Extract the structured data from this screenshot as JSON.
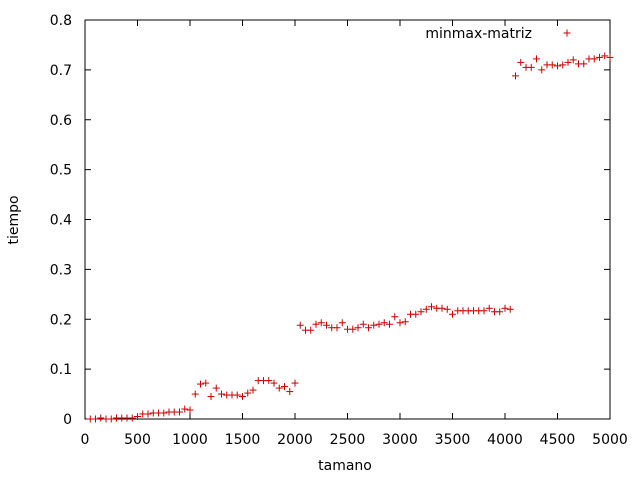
{
  "chart_data": {
    "type": "scatter",
    "title": "",
    "xlabel": "tamano",
    "ylabel": "tiempo",
    "xlim": [
      0,
      5000
    ],
    "ylim": [
      0,
      0.8
    ],
    "xticks": [
      "0",
      "500",
      "1000",
      "1500",
      "2000",
      "2500",
      "3000",
      "3500",
      "4000",
      "4500",
      "5000"
    ],
    "yticks": [
      "0",
      "0.1",
      "0.2",
      "0.3",
      "0.4",
      "0.5",
      "0.6",
      "0.7",
      "0.8"
    ],
    "grid": false,
    "legend_position": "top-right",
    "marker": "plus",
    "color": "#cc0000",
    "series": [
      {
        "name": "minmax-matriz",
        "points": [
          [
            50,
            0
          ],
          [
            100,
            0
          ],
          [
            150,
            0.002
          ],
          [
            200,
            0
          ],
          [
            250,
            0
          ],
          [
            300,
            0.002
          ],
          [
            350,
            0.002
          ],
          [
            400,
            0.002
          ],
          [
            450,
            0.002
          ],
          [
            500,
            0.005
          ],
          [
            550,
            0.01
          ],
          [
            600,
            0.01
          ],
          [
            650,
            0.012
          ],
          [
            700,
            0.012
          ],
          [
            750,
            0.012
          ],
          [
            800,
            0.014
          ],
          [
            850,
            0.014
          ],
          [
            900,
            0.014
          ],
          [
            950,
            0.02
          ],
          [
            1000,
            0.018
          ],
          [
            1050,
            0.05
          ],
          [
            1100,
            0.07
          ],
          [
            1150,
            0.072
          ],
          [
            1200,
            0.045
          ],
          [
            1250,
            0.062
          ],
          [
            1300,
            0.05
          ],
          [
            1350,
            0.048
          ],
          [
            1400,
            0.048
          ],
          [
            1450,
            0.048
          ],
          [
            1500,
            0.045
          ],
          [
            1550,
            0.052
          ],
          [
            1600,
            0.058
          ],
          [
            1650,
            0.077
          ],
          [
            1700,
            0.077
          ],
          [
            1750,
            0.077
          ],
          [
            1800,
            0.072
          ],
          [
            1850,
            0.062
          ],
          [
            1900,
            0.065
          ],
          [
            1950,
            0.055
          ],
          [
            2000,
            0.072
          ],
          [
            2050,
            0.188
          ],
          [
            2100,
            0.178
          ],
          [
            2150,
            0.178
          ],
          [
            2200,
            0.19
          ],
          [
            2250,
            0.193
          ],
          [
            2300,
            0.188
          ],
          [
            2350,
            0.183
          ],
          [
            2400,
            0.183
          ],
          [
            2450,
            0.193
          ],
          [
            2500,
            0.18
          ],
          [
            2550,
            0.18
          ],
          [
            2600,
            0.183
          ],
          [
            2650,
            0.19
          ],
          [
            2700,
            0.183
          ],
          [
            2750,
            0.188
          ],
          [
            2800,
            0.19
          ],
          [
            2850,
            0.193
          ],
          [
            2900,
            0.19
          ],
          [
            2950,
            0.205
          ],
          [
            3000,
            0.193
          ],
          [
            3050,
            0.195
          ],
          [
            3100,
            0.21
          ],
          [
            3150,
            0.21
          ],
          [
            3200,
            0.215
          ],
          [
            3250,
            0.22
          ],
          [
            3300,
            0.225
          ],
          [
            3350,
            0.222
          ],
          [
            3400,
            0.222
          ],
          [
            3450,
            0.22
          ],
          [
            3500,
            0.21
          ],
          [
            3550,
            0.217
          ],
          [
            3600,
            0.217
          ],
          [
            3650,
            0.217
          ],
          [
            3700,
            0.217
          ],
          [
            3750,
            0.217
          ],
          [
            3800,
            0.217
          ],
          [
            3850,
            0.222
          ],
          [
            3900,
            0.215
          ],
          [
            3950,
            0.215
          ],
          [
            4000,
            0.222
          ],
          [
            4050,
            0.22
          ],
          [
            4100,
            0.688
          ],
          [
            4150,
            0.715
          ],
          [
            4200,
            0.705
          ],
          [
            4250,
            0.705
          ],
          [
            4300,
            0.722
          ],
          [
            4350,
            0.7
          ],
          [
            4400,
            0.71
          ],
          [
            4450,
            0.71
          ],
          [
            4500,
            0.708
          ],
          [
            4550,
            0.71
          ],
          [
            4600,
            0.715
          ],
          [
            4650,
            0.72
          ],
          [
            4700,
            0.712
          ],
          [
            4750,
            0.712
          ],
          [
            4800,
            0.722
          ],
          [
            4850,
            0.722
          ],
          [
            4900,
            0.725
          ],
          [
            4950,
            0.728
          ],
          [
            5000,
            0.725
          ]
        ]
      }
    ]
  }
}
